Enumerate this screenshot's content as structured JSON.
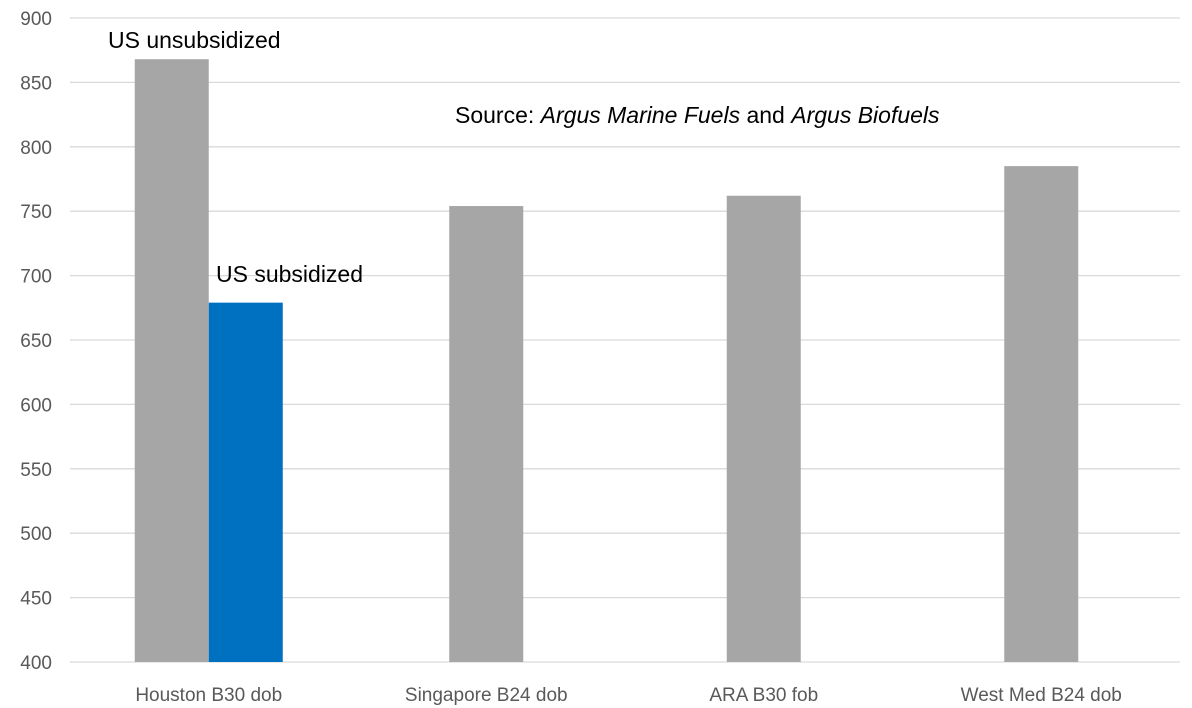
{
  "chart_data": {
    "type": "bar",
    "title": "",
    "xlabel": "",
    "ylabel": "",
    "ylim": [
      400,
      900
    ],
    "yticks": [
      400,
      450,
      500,
      550,
      600,
      650,
      700,
      750,
      800,
      850,
      900
    ],
    "grid": true,
    "legend": "none",
    "categories": [
      "Houston B30 dob",
      "Singapore B24 dob",
      "ARA B30 fob",
      "West Med B24 dob"
    ],
    "series": [
      {
        "name": "US unsubsidized",
        "color": "#a6a6a6",
        "values": [
          868,
          754,
          762,
          785
        ]
      },
      {
        "name": "US subsidized",
        "color": "#0070c0",
        "values": [
          679,
          null,
          null,
          null
        ]
      }
    ],
    "annotations": [
      {
        "segments": [
          {
            "text": "US unsubsidized",
            "italic": false
          }
        ]
      },
      {
        "segments": [
          {
            "text": "US subsidized",
            "italic": false
          }
        ]
      },
      {
        "segments": [
          {
            "text": "Source: ",
            "italic": false
          },
          {
            "text": "Argus Marine Fuels",
            "italic": true
          },
          {
            "text": " and ",
            "italic": false
          },
          {
            "text": "Argus Biofuels",
            "italic": true
          }
        ]
      }
    ]
  }
}
